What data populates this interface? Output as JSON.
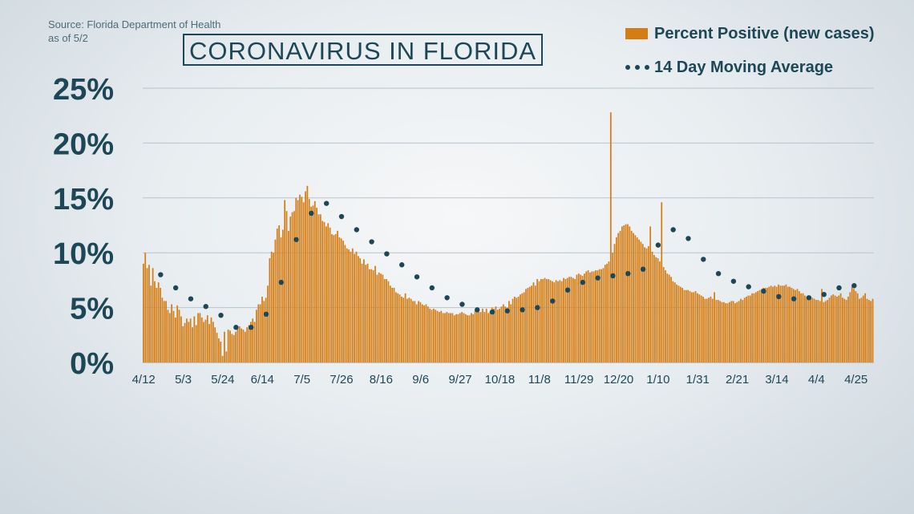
{
  "source": {
    "line1": "Source: Florida Department of Health",
    "line2": "as of 5/2"
  },
  "colors": {
    "bar": "#d47d15",
    "dot": "#1d4756",
    "grid": "#b9c4cb",
    "text": "#1d4756"
  },
  "chart_data": {
    "type": "bar",
    "title": "CORONAVIRUS IN FLORIDA",
    "xlabel": "",
    "ylabel": "",
    "ylim": [
      0,
      25
    ],
    "y_ticks": [
      "0%",
      "5%",
      "10%",
      "15%",
      "20%",
      "25%"
    ],
    "y_tick_values": [
      0,
      5,
      10,
      15,
      20,
      25
    ],
    "x_tick_labels": [
      "4/12",
      "5/3",
      "5/24",
      "6/14",
      "7/5",
      "7/26",
      "8/16",
      "9/6",
      "9/27",
      "10/18",
      "11/8",
      "11/29",
      "12/20",
      "1/10",
      "1/31",
      "2/21",
      "3/14",
      "4/4",
      "4/25"
    ],
    "x_tick_index": [
      0,
      21,
      42,
      63,
      84,
      105,
      126,
      147,
      168,
      189,
      210,
      231,
      252,
      273,
      294,
      315,
      336,
      357,
      378
    ],
    "legend_position": "top-right",
    "grid": true,
    "series": [
      {
        "name": "Percent Positive (new cases)",
        "type": "bar",
        "values": [
          9.0,
          10.0,
          8.6,
          8.9,
          7.0,
          8.6,
          7.4,
          6.8,
          7.3,
          6.8,
          5.9,
          5.6,
          5.6,
          4.8,
          4.5,
          5.3,
          4.7,
          4.1,
          5.2,
          4.8,
          4.2,
          3.3,
          3.6,
          4.0,
          3.7,
          4.0,
          3.2,
          4.2,
          3.4,
          4.5,
          4.5,
          4.1,
          3.7,
          3.9,
          4.3,
          3.5,
          4.1,
          3.7,
          3.2,
          2.7,
          2.2,
          1.9,
          0.6,
          2.8,
          1.0,
          3.0,
          2.9,
          2.6,
          2.5,
          2.8,
          3.1,
          3.3,
          3.1,
          3.0,
          2.8,
          3.2,
          3.4,
          3.7,
          4.0,
          3.7,
          4.8,
          5.3,
          5.3,
          6.0,
          5.6,
          5.9,
          7.0,
          9.5,
          10.1,
          10.0,
          11.2,
          12.2,
          12.5,
          11.4,
          12.1,
          14.8,
          13.8,
          12.0,
          13.3,
          13.7,
          13.8,
          15.0,
          14.8,
          15.3,
          15.1,
          14.6,
          15.6,
          16.1,
          14.9,
          14.2,
          14.3,
          14.7,
          14.1,
          13.5,
          13.5,
          12.9,
          12.8,
          12.4,
          12.7,
          12.3,
          11.7,
          11.6,
          11.7,
          12.0,
          11.4,
          11.3,
          11.1,
          10.7,
          10.4,
          10.3,
          10.1,
          10.4,
          9.9,
          10.1,
          9.7,
          9.5,
          9.0,
          9.4,
          8.9,
          9.0,
          8.5,
          8.5,
          8.4,
          8.8,
          8.0,
          8.2,
          8.1,
          8.0,
          7.6,
          7.6,
          7.4,
          7.0,
          6.8,
          6.8,
          6.4,
          6.3,
          6.2,
          6.0,
          5.9,
          6.3,
          5.8,
          5.9,
          5.8,
          5.6,
          5.6,
          5.3,
          5.6,
          5.5,
          5.3,
          5.2,
          5.3,
          5.1,
          4.9,
          4.8,
          4.9,
          4.8,
          4.7,
          4.6,
          4.7,
          4.5,
          4.5,
          4.6,
          4.5,
          4.5,
          4.5,
          4.3,
          4.4,
          4.4,
          4.5,
          4.6,
          4.5,
          4.4,
          4.3,
          4.3,
          4.5,
          4.4,
          4.7,
          4.6,
          4.6,
          4.6,
          4.9,
          4.6,
          4.9,
          4.5,
          4.6,
          5.0,
          4.9,
          5.1,
          4.8,
          4.9,
          5.1,
          5.3,
          5.1,
          5.0,
          5.6,
          5.3,
          5.8,
          6.0,
          5.9,
          6.0,
          6.2,
          6.3,
          6.4,
          6.7,
          6.8,
          6.9,
          7.0,
          7.3,
          7.0,
          7.6,
          7.4,
          7.6,
          7.6,
          7.7,
          7.6,
          7.6,
          7.5,
          7.4,
          7.3,
          7.5,
          7.4,
          7.5,
          7.4,
          7.7,
          7.6,
          7.7,
          7.8,
          7.8,
          7.7,
          7.6,
          8.0,
          8.1,
          8.0,
          7.9,
          8.1,
          8.3,
          8.4,
          8.2,
          8.3,
          8.3,
          8.4,
          8.4,
          8.5,
          8.5,
          8.6,
          8.9,
          9.0,
          9.2,
          22.8,
          10.0,
          10.8,
          11.4,
          11.8,
          12.0,
          12.4,
          12.5,
          12.6,
          12.6,
          12.4,
          12.0,
          11.8,
          11.6,
          11.4,
          11.2,
          11.0,
          10.8,
          10.5,
          10.4,
          10.6,
          12.4,
          10.1,
          9.8,
          9.6,
          9.5,
          9.2,
          14.6,
          8.7,
          8.4,
          8.1,
          8.0,
          7.8,
          7.4,
          7.3,
          7.1,
          7.0,
          6.9,
          6.8,
          6.6,
          6.6,
          6.6,
          6.5,
          6.4,
          6.4,
          6.5,
          6.3,
          6.2,
          6.1,
          6.0,
          5.8,
          5.8,
          5.9,
          6.0,
          5.8,
          6.4,
          5.7,
          5.7,
          5.6,
          5.5,
          5.5,
          5.4,
          5.4,
          5.5,
          5.6,
          5.6,
          5.4,
          5.5,
          5.6,
          5.8,
          5.7,
          5.9,
          6.0,
          6.1,
          6.1,
          6.3,
          6.3,
          6.4,
          6.5,
          6.6,
          6.7,
          6.8,
          6.8,
          6.8,
          6.9,
          7.0,
          6.9,
          7.0,
          6.9,
          7.1,
          7.0,
          7.0,
          7.0,
          7.1,
          6.9,
          6.9,
          6.8,
          6.7,
          6.6,
          6.7,
          6.5,
          6.3,
          6.3,
          6.1,
          6.0,
          6.0,
          6.0,
          5.9,
          5.8,
          5.7,
          5.7,
          5.6,
          6.7,
          5.5,
          5.6,
          5.7,
          5.9,
          6.1,
          6.2,
          6.1,
          6.0,
          6.1,
          6.3,
          5.9,
          5.8,
          5.7,
          6.0,
          6.4,
          6.9,
          6.7,
          6.5,
          6.3,
          5.8,
          5.9,
          6.1,
          6.3,
          5.8,
          5.7,
          5.6,
          5.8
        ],
        "color": "#d47d15"
      },
      {
        "name": "14 Day Moving Average",
        "type": "dots",
        "x_index": [
          9,
          17,
          25,
          33,
          41,
          49,
          57,
          65,
          73,
          81,
          89,
          97,
          105,
          113,
          121,
          129,
          137,
          145,
          153,
          161,
          169,
          177,
          185,
          193,
          201,
          209,
          217,
          225,
          233,
          241,
          249,
          257,
          265,
          273,
          281,
          289,
          297,
          305,
          313,
          321,
          329,
          337,
          345,
          353,
          361,
          369,
          377
        ],
        "values": [
          8.0,
          6.8,
          5.8,
          5.1,
          4.3,
          3.2,
          3.2,
          4.4,
          7.3,
          11.2,
          13.6,
          14.5,
          13.3,
          12.1,
          11.0,
          9.9,
          8.9,
          7.8,
          6.8,
          5.9,
          5.3,
          4.8,
          4.6,
          4.7,
          4.8,
          5.0,
          5.6,
          6.6,
          7.3,
          7.7,
          7.9,
          8.1,
          8.5,
          10.7,
          12.1,
          11.3,
          9.4,
          8.1,
          7.4,
          6.9,
          6.5,
          6.0,
          5.8,
          5.9,
          6.2,
          6.8,
          7.0
        ],
        "color": "#1d4756"
      }
    ]
  }
}
